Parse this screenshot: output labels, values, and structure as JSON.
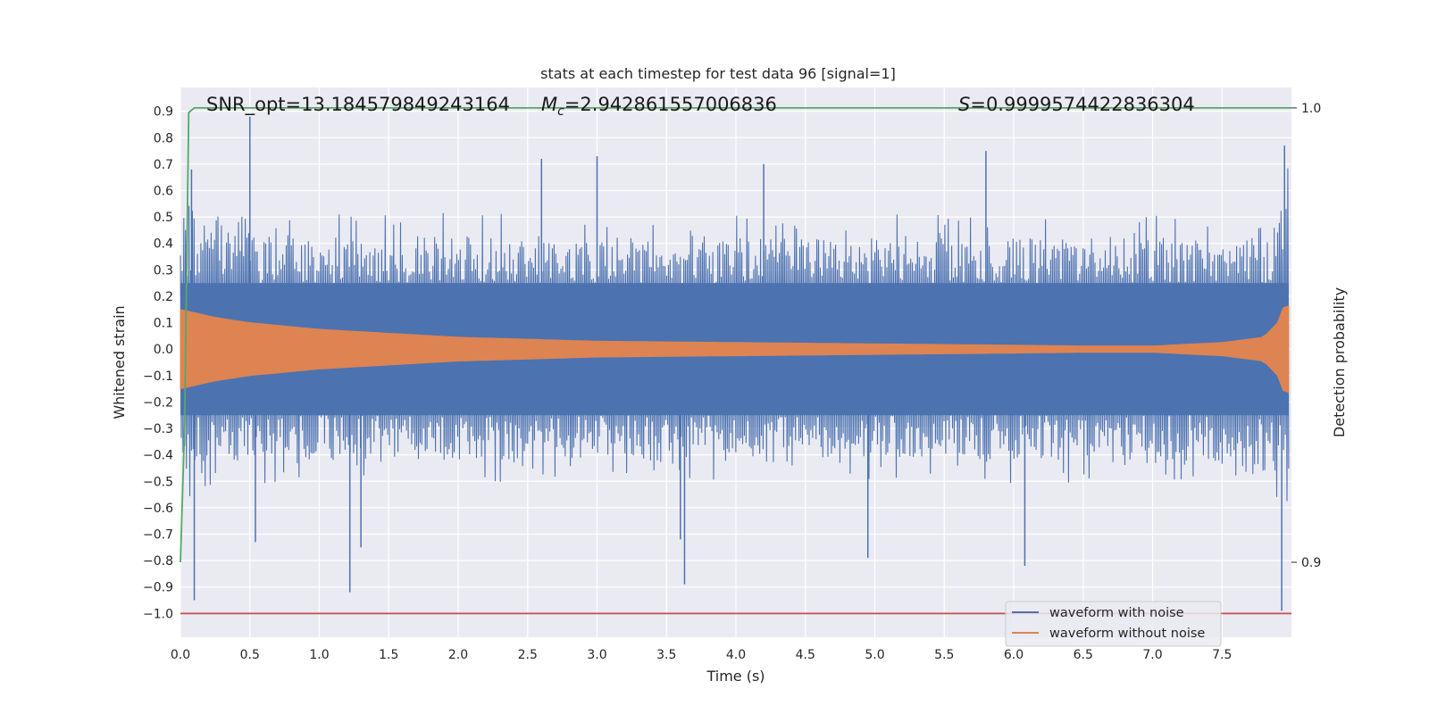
{
  "chart_data": {
    "type": "line",
    "title": "stats at each timestep for test data 96 [signal=1]",
    "xlabel": "Time (s)",
    "ylabel": "Whitened strain",
    "y2label": "Detection probability",
    "xlim": [
      0.0,
      8.0
    ],
    "ylim": [
      -1.09,
      0.99
    ],
    "y2lim": [
      0.8835,
      1.0045
    ],
    "x_ticks": [
      "0.0",
      "0.5",
      "1.0",
      "1.5",
      "2.0",
      "2.5",
      "3.0",
      "3.5",
      "4.0",
      "4.5",
      "5.0",
      "5.5",
      "6.0",
      "6.5",
      "7.0",
      "7.5"
    ],
    "y_ticks": [
      "0.9",
      "0.8",
      "0.7",
      "0.6",
      "0.5",
      "0.4",
      "0.3",
      "0.2",
      "0.1",
      "0.0",
      "−0.1",
      "−0.2",
      "−0.3",
      "−0.4",
      "−0.5",
      "−0.6",
      "−0.7",
      "−0.8",
      "−0.9",
      "−1.0"
    ],
    "y2_ticks": [
      "1.0",
      "0.9"
    ],
    "grid": true,
    "legend_position": "lower-right",
    "annotations": {
      "snr": "SNR_opt=13.184579849243164",
      "mc_symbol": "M",
      "mc_sub": "c",
      "mc_value": "=2.942861557006836",
      "s_symbol": "S",
      "s_value": "=0.9999574422836304"
    },
    "series": [
      {
        "name": "waveform with noise",
        "color": "#4c72b0",
        "axis": "left",
        "envelope_x": [
          0.0,
          0.05,
          0.1,
          0.5,
          1.0,
          2.0,
          3.0,
          4.0,
          5.0,
          6.0,
          6.5,
          7.0,
          7.5,
          7.8,
          7.9,
          8.0
        ],
        "envelope_upper": [
          0.62,
          0.7,
          0.6,
          0.48,
          0.46,
          0.46,
          0.45,
          0.45,
          0.45,
          0.45,
          0.45,
          0.45,
          0.46,
          0.48,
          0.55,
          0.6
        ],
        "envelope_lower": [
          -0.52,
          -0.55,
          -0.5,
          -0.45,
          -0.45,
          -0.45,
          -0.44,
          -0.44,
          -0.44,
          -0.45,
          -0.45,
          -0.45,
          -0.46,
          -0.5,
          -0.55,
          -0.55
        ],
        "core_upper": 0.25,
        "core_lower": -0.25,
        "spikes": [
          {
            "x": 0.1,
            "y": -0.95
          },
          {
            "x": 0.5,
            "y": 0.88
          },
          {
            "x": 0.54,
            "y": -0.73
          },
          {
            "x": 1.22,
            "y": -0.92
          },
          {
            "x": 1.3,
            "y": -0.75
          },
          {
            "x": 2.6,
            "y": 0.72
          },
          {
            "x": 3.0,
            "y": 0.73
          },
          {
            "x": 3.63,
            "y": -0.89
          },
          {
            "x": 3.6,
            "y": -0.72
          },
          {
            "x": 4.95,
            "y": -0.79
          },
          {
            "x": 6.08,
            "y": -0.82
          },
          {
            "x": 7.95,
            "y": 0.77
          },
          {
            "x": 7.93,
            "y": -0.99
          },
          {
            "x": 4.2,
            "y": 0.7
          },
          {
            "x": 5.8,
            "y": 0.75
          },
          {
            "x": 0.08,
            "y": 0.68
          }
        ]
      },
      {
        "name": "waveform without noise",
        "color": "#dd8452",
        "axis": "left",
        "envelope_x": [
          0.0,
          0.25,
          0.5,
          1.0,
          1.5,
          2.0,
          3.0,
          4.0,
          5.0,
          6.0,
          6.5,
          7.0,
          7.5,
          7.8,
          7.9,
          7.95,
          8.0
        ],
        "envelope_amplitude": [
          0.15,
          0.12,
          0.1,
          0.075,
          0.06,
          0.045,
          0.03,
          0.025,
          0.02,
          0.015,
          0.012,
          0.012,
          0.025,
          0.045,
          0.1,
          0.17,
          0.16
        ]
      },
      {
        "name": "",
        "color": "#55a868",
        "axis": "right",
        "x": [
          0.0,
          0.03,
          0.06,
          0.1,
          8.0
        ],
        "y": [
          0.9,
          0.93,
          0.999,
          1.0,
          1.0
        ]
      },
      {
        "name": "",
        "color": "#c44e52",
        "axis": "left",
        "x": [
          0.0,
          8.0
        ],
        "y": [
          -1.0,
          -1.0
        ]
      }
    ]
  }
}
